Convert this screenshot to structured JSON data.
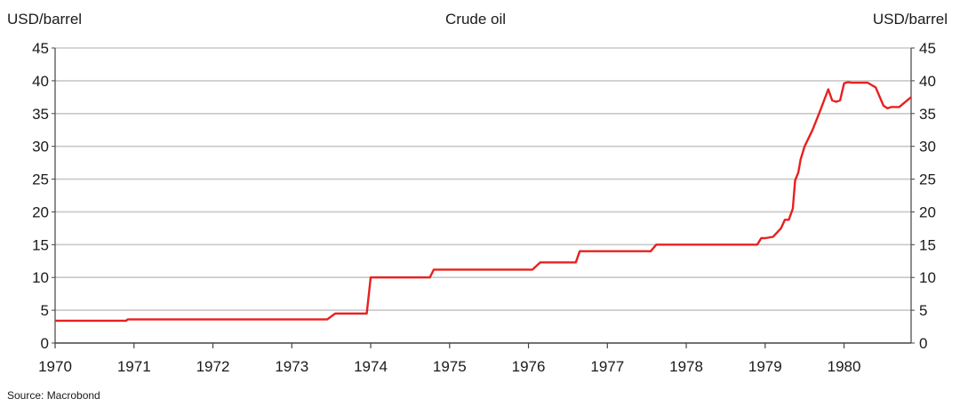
{
  "chart_data": {
    "type": "line",
    "title": "Crude oil",
    "ylabel_left": "USD/barrel",
    "ylabel_right": "USD/barrel",
    "source": "Source: Macrobond",
    "ylim": [
      0,
      45
    ],
    "yticks": [
      "0",
      "5",
      "10",
      "15",
      "20",
      "25",
      "30",
      "35",
      "40",
      "45"
    ],
    "xlim": [
      1970,
      1980.85
    ],
    "xticks": [
      "1970",
      "1971",
      "1972",
      "1973",
      "1974",
      "1975",
      "1976",
      "1977",
      "1978",
      "1979",
      "1980"
    ],
    "grid": true,
    "line_color": "#e8201f",
    "series": [
      {
        "x": [
          1970.0,
          1970.9,
          1970.92,
          1973.45,
          1973.55,
          1973.95,
          1974.0,
          1974.75,
          1974.8,
          1976.05,
          1976.15,
          1976.6,
          1976.65,
          1977.55,
          1977.62,
          1978.9,
          1978.95,
          1979.0,
          1979.1,
          1979.2,
          1979.25,
          1979.3,
          1979.35,
          1979.38,
          1979.42,
          1979.45,
          1979.5,
          1979.6,
          1979.7,
          1979.8,
          1979.85,
          1979.9,
          1979.95,
          1980.0,
          1980.05,
          1980.1,
          1980.2,
          1980.3,
          1980.4,
          1980.5,
          1980.55,
          1980.6,
          1980.7,
          1980.75,
          1980.85
        ],
        "y": [
          3.4,
          3.4,
          3.6,
          3.6,
          4.5,
          4.5,
          10.0,
          10.0,
          11.2,
          11.2,
          12.3,
          12.3,
          14.0,
          14.0,
          15.0,
          15.0,
          16.0,
          16.0,
          16.2,
          17.5,
          18.8,
          18.8,
          20.5,
          24.8,
          26.0,
          28.0,
          30.0,
          32.5,
          35.5,
          38.7,
          37.0,
          36.8,
          37.0,
          39.6,
          39.8,
          39.7,
          39.7,
          39.7,
          39.0,
          36.2,
          35.8,
          36.0,
          36.0,
          36.5,
          37.5
        ]
      }
    ]
  }
}
